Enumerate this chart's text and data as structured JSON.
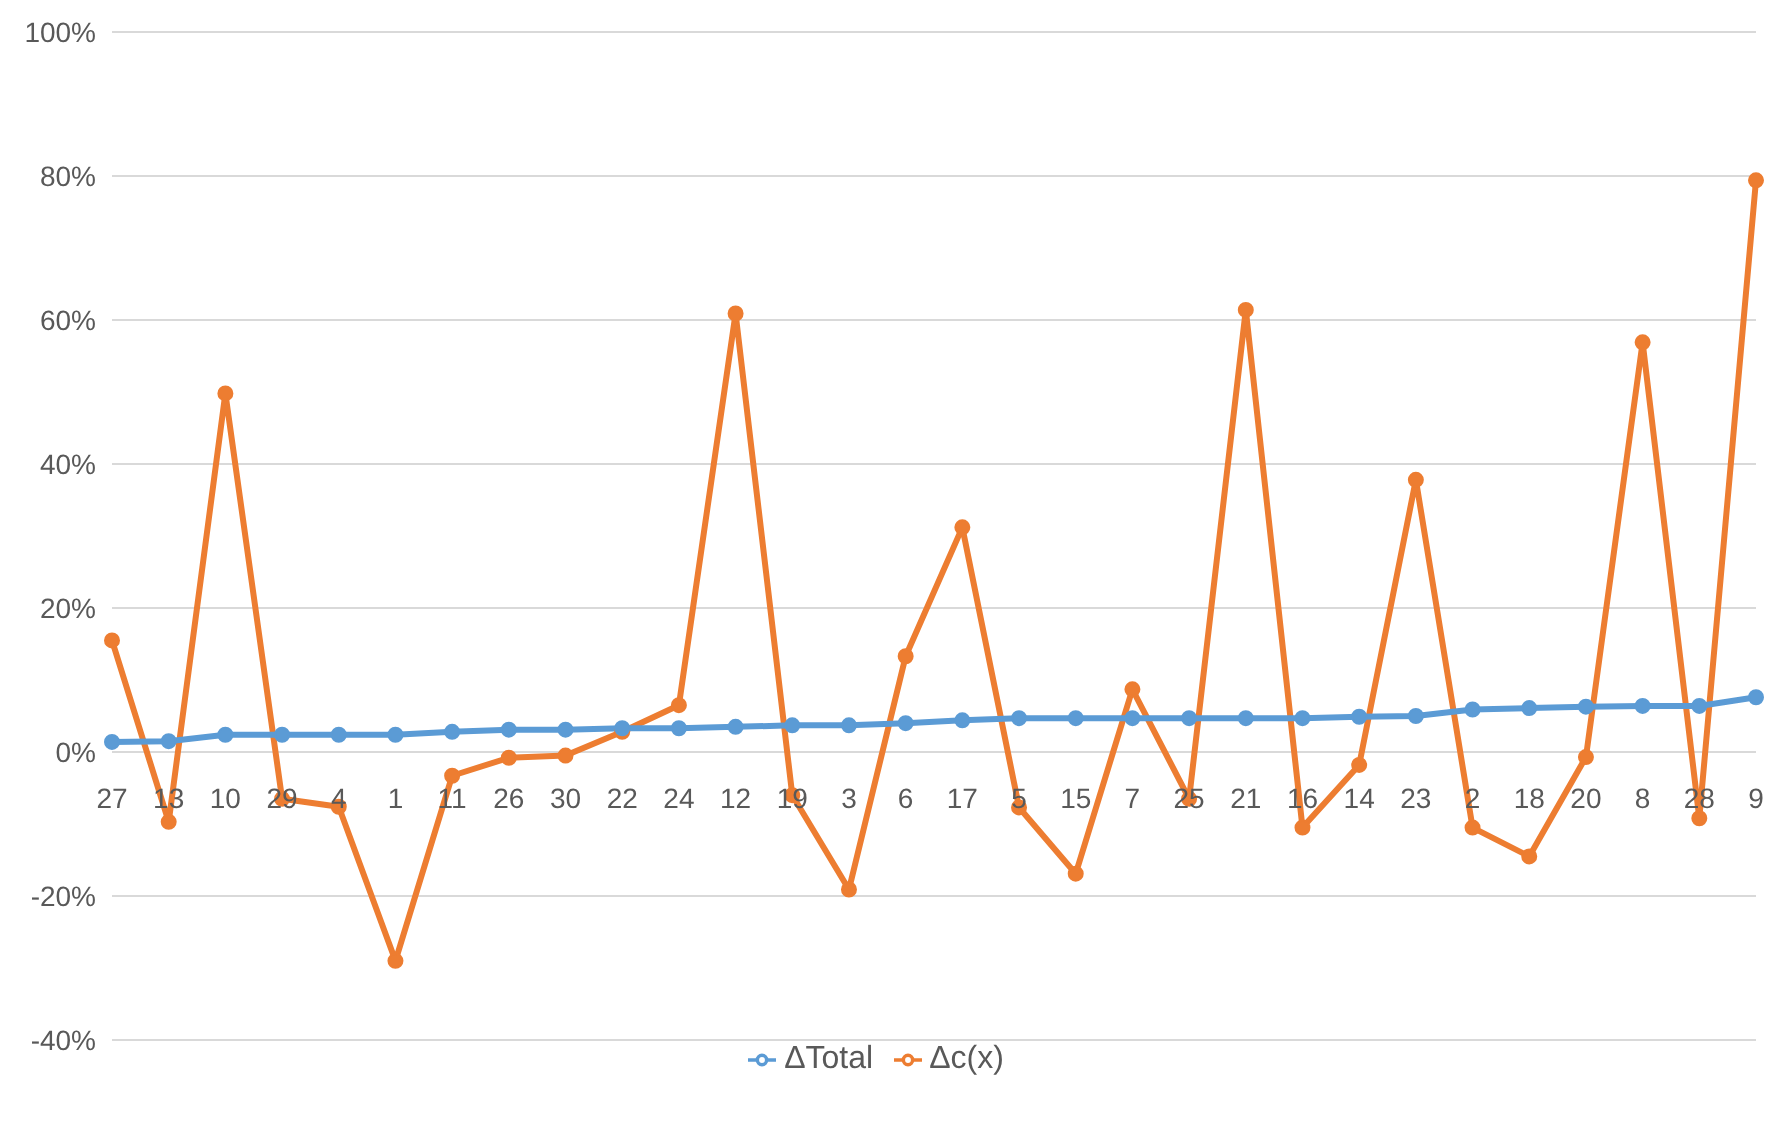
{
  "chart_data": {
    "type": "line",
    "categories": [
      "27",
      "13",
      "10",
      "29",
      "4",
      "1",
      "11",
      "26",
      "30",
      "22",
      "24",
      "12",
      "19",
      "3",
      "6",
      "17",
      "5",
      "15",
      "7",
      "25",
      "21",
      "16",
      "14",
      "23",
      "2",
      "18",
      "20",
      "8",
      "28",
      "9"
    ],
    "series": [
      {
        "name": "ΔTotal",
        "color": "#5b9bd5",
        "values": [
          1.4,
          1.5,
          2.4,
          2.4,
          2.4,
          2.4,
          2.8,
          3.1,
          3.1,
          3.3,
          3.3,
          3.5,
          3.7,
          3.7,
          4.0,
          4.4,
          4.7,
          4.7,
          4.7,
          4.7,
          4.7,
          4.7,
          4.9,
          5.0,
          5.9,
          6.1,
          6.3,
          6.4,
          6.4,
          7.6
        ]
      },
      {
        "name": "Δc(x)",
        "color": "#ed7d31",
        "values": [
          15.5,
          -9.7,
          49.8,
          -6.5,
          -7.6,
          -29,
          -3.3,
          -0.8,
          -0.5,
          2.8,
          6.5,
          60.9,
          -6,
          -19.1,
          13.3,
          31.2,
          -7.7,
          -16.9,
          8.7,
          -6.5,
          61.4,
          -10.5,
          -1.8,
          37.8,
          -10.5,
          -14.5,
          -0.7,
          56.9,
          -9.2,
          79.4
        ]
      }
    ],
    "ylim": [
      -40,
      100
    ],
    "yticks": [
      {
        "value": -40,
        "label": "-40%"
      },
      {
        "value": -20,
        "label": "-20%"
      },
      {
        "value": 0,
        "label": "0%"
      },
      {
        "value": 20,
        "label": "20%"
      },
      {
        "value": 40,
        "label": "40%"
      },
      {
        "value": 60,
        "label": "60%"
      },
      {
        "value": 80,
        "label": "80%"
      },
      {
        "value": 100,
        "label": "100%"
      }
    ],
    "grid": "y",
    "legend": "bottom",
    "marker": "circle",
    "line_style": "solid"
  }
}
